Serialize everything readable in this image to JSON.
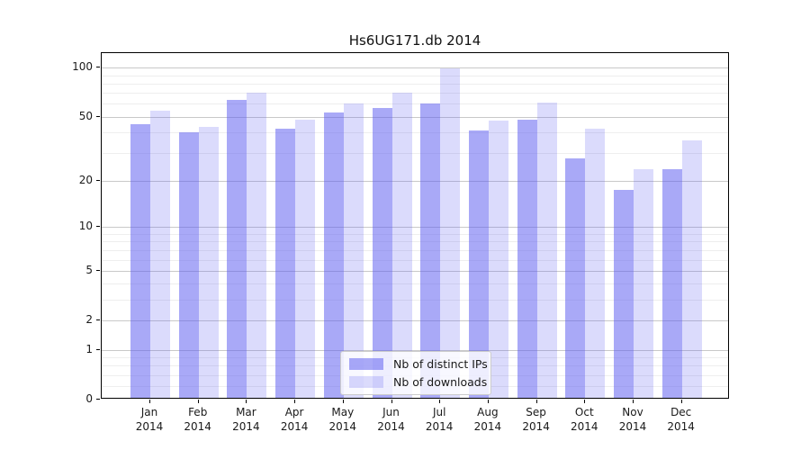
{
  "chart_data": {
    "type": "bar",
    "title": "Hs6UG171.db 2014",
    "categories": [
      "Jan",
      "Feb",
      "Mar",
      "Apr",
      "May",
      "Jun",
      "Jul",
      "Aug",
      "Sep",
      "Oct",
      "Nov",
      "Dec"
    ],
    "year_label": "2014",
    "series": [
      {
        "name": "Nb of distinct IPs",
        "color": "rgba(90,90,240,0.52)",
        "values": [
          44,
          39,
          62,
          41,
          52,
          55,
          59,
          40,
          47,
          27,
          17,
          23
        ]
      },
      {
        "name": "Nb of downloads",
        "color": "rgba(90,90,240,0.22)",
        "values": [
          53,
          42,
          69,
          47,
          59,
          69,
          96,
          46,
          60,
          41,
          23,
          35
        ]
      }
    ],
    "yscale": "log1p",
    "yticks": [
      0,
      1,
      2,
      5,
      10,
      20,
      50,
      100
    ],
    "ylim": [
      0,
      117
    ],
    "xlabel": "",
    "ylabel": "",
    "grid": true,
    "legend_position": "bottom-center",
    "colors": {
      "bar_distinct_ips": "#a9a9f7",
      "bar_downloads": "#d9d9fa",
      "grid_major": "#c9c9c9",
      "grid_minor": "#eeeeee",
      "axis": "#000000"
    }
  }
}
